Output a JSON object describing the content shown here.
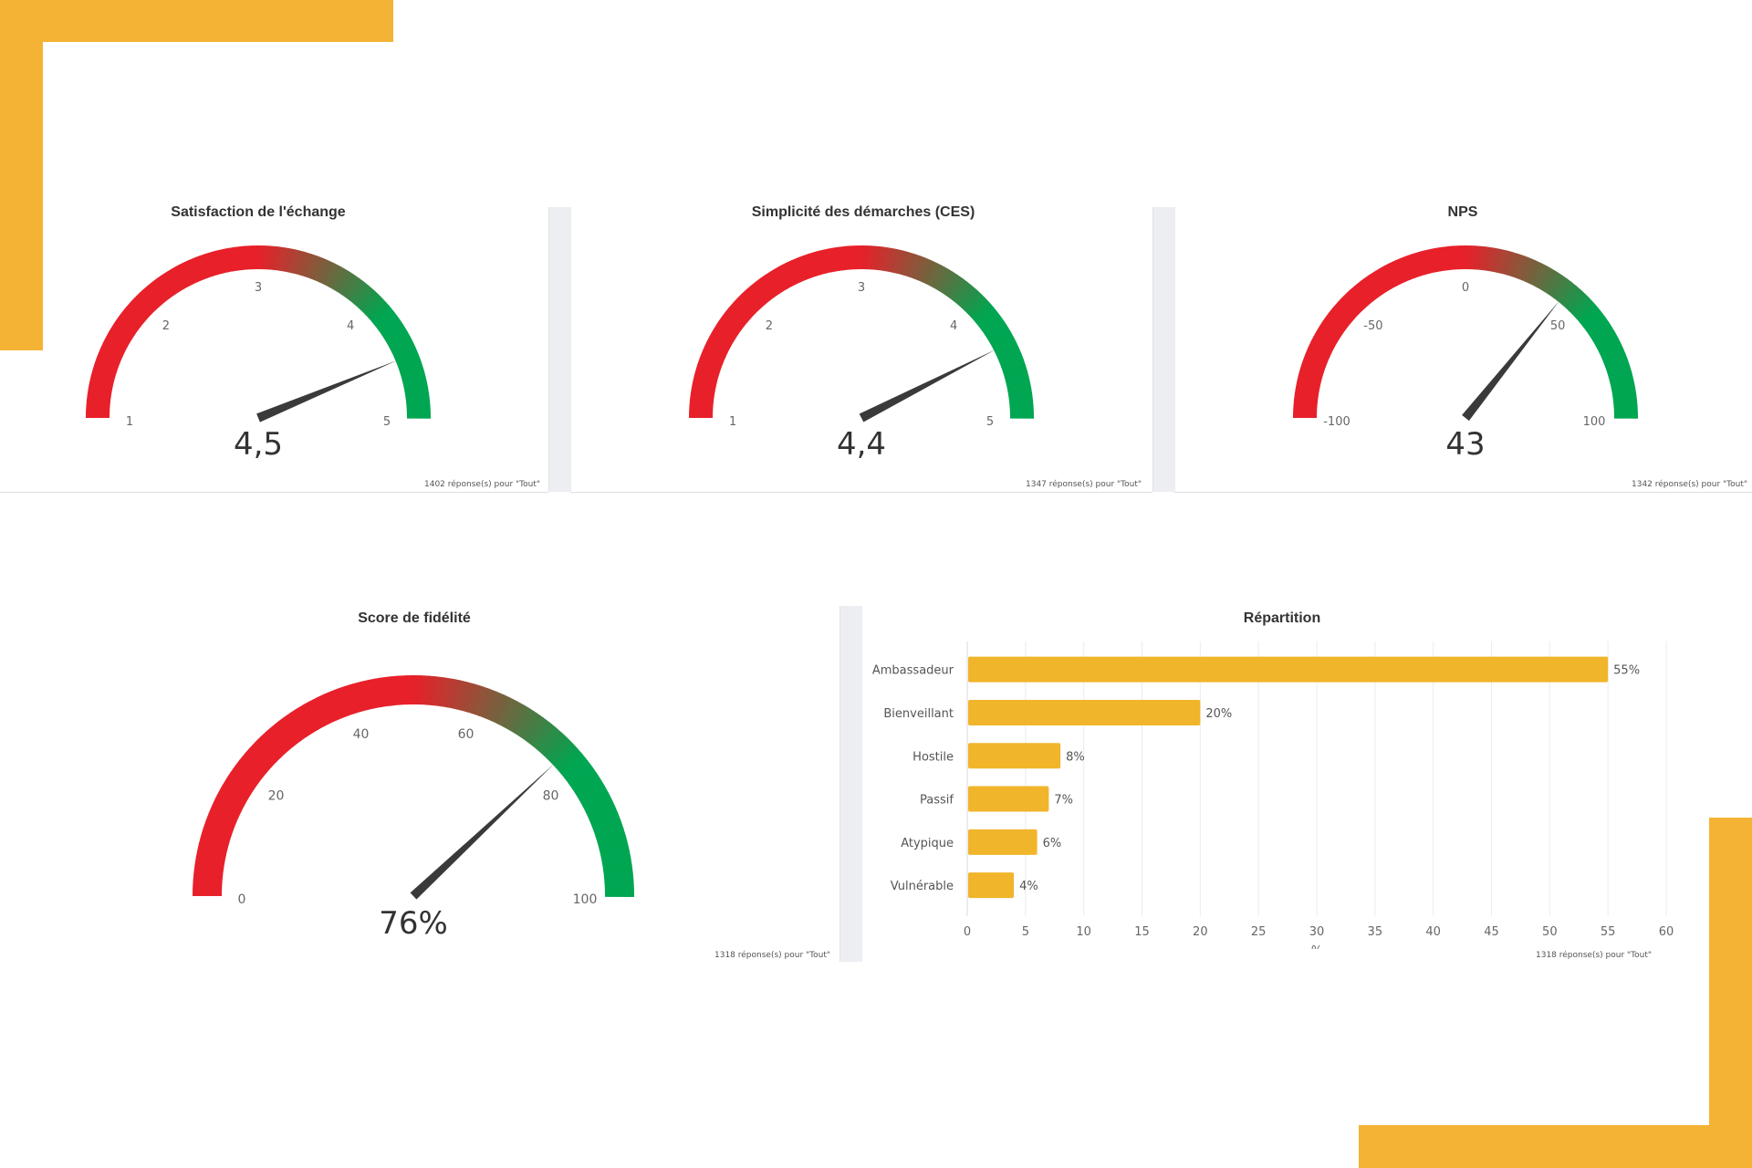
{
  "colors": {
    "accent": "#f5b335",
    "bar": "#f0b52a",
    "red": "#e8202a",
    "green": "#00a651",
    "needle": "#3a3a3a"
  },
  "gauges": [
    {
      "id": "satisfaction",
      "title": "Satisfaction de l'échange",
      "min": 1,
      "max": 5,
      "ticks": [
        1,
        2,
        3,
        4,
        5
      ],
      "tick_labels": [
        "1",
        "2",
        "3",
        "4",
        "5"
      ],
      "value": 4.5,
      "value_label": "4,5",
      "footnote": "1402 réponse(s) pour \"Tout\""
    },
    {
      "id": "ces",
      "title": "Simplicité des démarches (CES)",
      "min": 1,
      "max": 5,
      "ticks": [
        1,
        2,
        3,
        4,
        5
      ],
      "tick_labels": [
        "1",
        "2",
        "3",
        "4",
        "5"
      ],
      "value": 4.4,
      "value_label": "4,4",
      "footnote": "1347 réponse(s) pour \"Tout\""
    },
    {
      "id": "nps",
      "title": "NPS",
      "min": -100,
      "max": 100,
      "ticks": [
        -100,
        -50,
        0,
        50,
        100
      ],
      "tick_labels": [
        "-100",
        "-50",
        "0",
        "50",
        "100"
      ],
      "value": 43,
      "value_label": "43",
      "footnote": "1342 réponse(s) pour \"Tout\""
    },
    {
      "id": "fidelite",
      "title": "Score de fidélité",
      "min": 0,
      "max": 100,
      "ticks": [
        0,
        20,
        40,
        60,
        80,
        100
      ],
      "tick_labels": [
        "0",
        "20",
        "40",
        "60",
        "80",
        "100"
      ],
      "value": 76,
      "value_label": "76%",
      "footnote": "1318 réponse(s) pour \"Tout\""
    }
  ],
  "chart_data": {
    "type": "bar",
    "orientation": "horizontal",
    "title": "Répartition",
    "categories": [
      "Ambassadeur",
      "Bienveillant",
      "Hostile",
      "Passif",
      "Atypique",
      "Vulnérable"
    ],
    "values": [
      55,
      20,
      8,
      7,
      6,
      4
    ],
    "value_labels": [
      "55%",
      "20%",
      "8%",
      "7%",
      "6%",
      "4%"
    ],
    "xlabel": "%",
    "xlim": [
      0,
      60
    ],
    "xticks": [
      0,
      5,
      10,
      15,
      20,
      25,
      30,
      35,
      40,
      45,
      50,
      55,
      60
    ],
    "xtick_labels": [
      "0",
      "5",
      "10",
      "15",
      "20",
      "25",
      "30",
      "35",
      "40",
      "45",
      "50",
      "55",
      "60"
    ],
    "grid": true,
    "footnote": "1318 réponse(s) pour \"Tout\""
  }
}
